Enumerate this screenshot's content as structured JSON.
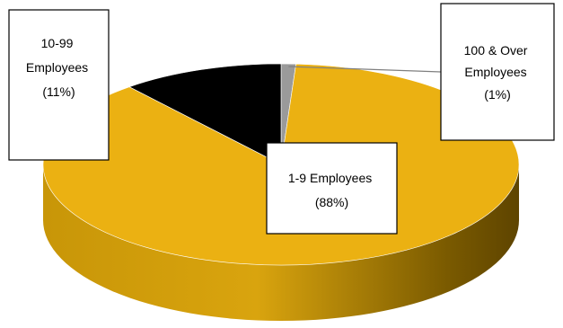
{
  "chart_data": {
    "type": "pie",
    "style": "3d-tilted",
    "title": "",
    "slices": [
      {
        "label_lines": [
          "1-9 Employees",
          "(88%)"
        ],
        "value": 88,
        "color": "#EBB112",
        "side_dark": "#7A5A00"
      },
      {
        "label_lines": [
          "10-99",
          "Employees",
          "(11%)"
        ],
        "value": 11,
        "color": "#000000",
        "side_dark": "#000000"
      },
      {
        "label_lines": [
          "100 & Over",
          "Employees",
          "(1%)"
        ],
        "value": 1,
        "color": "#9A9A9A",
        "side_dark": "#5A5A5A"
      }
    ],
    "legend": "none",
    "label_style": "callout-boxes"
  }
}
